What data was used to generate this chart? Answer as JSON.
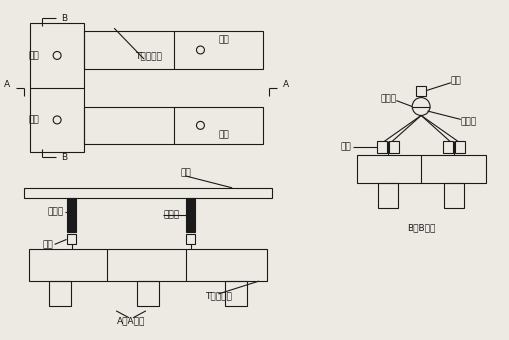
{
  "bg_color": "#ede9e3",
  "line_color": "#1a1a1a",
  "font_size": 6.5,
  "lw": 0.8,
  "labels": {
    "B_top": "B",
    "B_bottom": "B",
    "A_left": "A",
    "A_right": "A",
    "T_cage_plan": "T形钢筋笼",
    "hang1": "吊点",
    "hang2": "吊点",
    "hang3": "吊点",
    "hang4": "吊点",
    "flat_bar_aa": "扁担",
    "pulley_aa": "定滑轮",
    "wire_aa": "钢丝绳",
    "lock_aa": "锁环",
    "T_cage_aa": "T形钢筋笼",
    "AA": "A－A断面",
    "flat_bar_bb": "扁担",
    "pulley_bb": "定滑轮",
    "wire_bb": "钢丝绳",
    "lock_bb": "锁环",
    "BB": "B－B断面"
  }
}
